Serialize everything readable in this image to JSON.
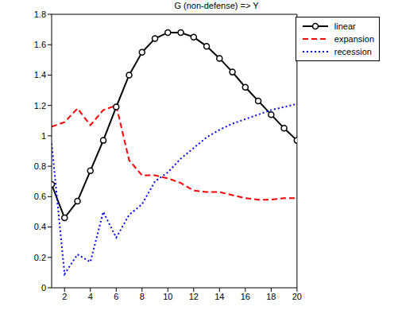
{
  "chart_data": {
    "type": "line",
    "title": "G (non-defense) => Y",
    "x": [
      1,
      2,
      3,
      4,
      5,
      6,
      7,
      8,
      9,
      10,
      11,
      12,
      13,
      14,
      15,
      16,
      17,
      18,
      19,
      20
    ],
    "series": [
      {
        "name": "linear",
        "color": "#000000",
        "line_style": "solid",
        "marker": "circle",
        "values": [
          0.68,
          0.46,
          0.57,
          0.77,
          0.97,
          1.19,
          1.4,
          1.55,
          1.64,
          1.68,
          1.68,
          1.65,
          1.59,
          1.51,
          1.42,
          1.32,
          1.23,
          1.14,
          1.05,
          0.97
        ]
      },
      {
        "name": "expansion",
        "color": "#ff0000",
        "line_style": "dashed",
        "marker": "none",
        "values": [
          1.06,
          1.09,
          1.18,
          1.07,
          1.17,
          1.2,
          0.84,
          0.74,
          0.74,
          0.72,
          0.69,
          0.64,
          0.63,
          0.63,
          0.61,
          0.59,
          0.58,
          0.58,
          0.59,
          0.59
        ]
      },
      {
        "name": "recession",
        "color": "#0000ff",
        "line_style": "dotted",
        "marker": "none",
        "values": [
          0.95,
          0.09,
          0.22,
          0.17,
          0.5,
          0.33,
          0.48,
          0.55,
          0.7,
          0.76,
          0.85,
          0.92,
          0.99,
          1.04,
          1.08,
          1.11,
          1.14,
          1.17,
          1.19,
          1.21
        ]
      }
    ],
    "xlim": [
      1,
      20
    ],
    "xticks": [
      2,
      4,
      6,
      8,
      10,
      12,
      14,
      16,
      18,
      20
    ],
    "ylim": [
      0,
      1.8
    ],
    "yticks": [
      0,
      0.2,
      0.4,
      0.6,
      0.8,
      1,
      1.2,
      1.4,
      1.6,
      1.8
    ],
    "grid": false,
    "legend": "top-right"
  }
}
